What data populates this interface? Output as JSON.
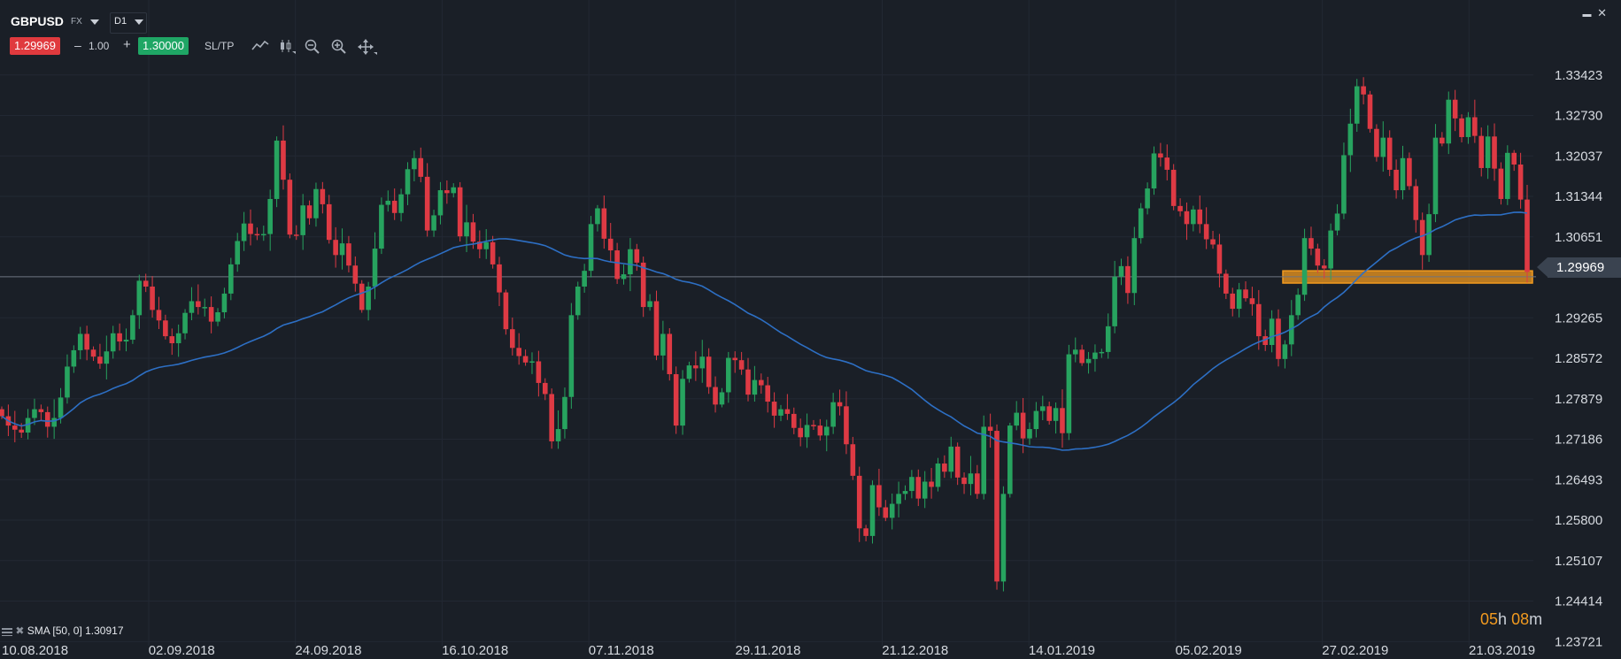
{
  "header": {
    "symbol": "GBPUSD",
    "market": "FX",
    "timeframe": "D1"
  },
  "trade_bar": {
    "sell_price": "1.29969",
    "qty_minus": "–",
    "quantity": "1.00",
    "qty_plus": "+",
    "buy_price": "1.30000",
    "sltp_label": "SL/TP"
  },
  "tools": [
    "line-chart-icon",
    "candlestick-icon",
    "zoom-out-icon",
    "zoom-in-icon",
    "pan-move-icon"
  ],
  "window_controls": {
    "minimize": "▬",
    "close": "✕"
  },
  "indicator": {
    "label": "SMA [50, 0] 1.30917"
  },
  "countdown": {
    "hours": "05",
    "h": "h",
    "minutes": "08",
    "m": "m"
  },
  "colors": {
    "background": "#1a1f27",
    "bull": "#27a35f",
    "bear": "#de3a44",
    "sma": "#2d6fc4",
    "highlight": "#f29a1f",
    "sell": "#e03a3e",
    "buy": "#1fa665"
  },
  "chart_data": {
    "type": "candlestick",
    "current_price": 1.29969,
    "ylim": [
      1.2365,
      1.3395
    ],
    "y_ticks": [
      "1.33423",
      "1.32730",
      "1.32037",
      "1.31344",
      "1.30651",
      "1.29969",
      "1.29265",
      "1.28572",
      "1.27879",
      "1.27186",
      "1.26493",
      "1.25800",
      "1.25107",
      "1.24414",
      "1.23721"
    ],
    "x_ticks": [
      "10.08.2018",
      "02.09.2018",
      "24.09.2018",
      "16.10.2018",
      "07.11.2018",
      "29.11.2018",
      "21.12.2018",
      "14.01.2019",
      "05.02.2019",
      "27.02.2019",
      "21.03.2019"
    ],
    "support_zone": [
      1.2986,
      1.3007
    ],
    "sma_period": 50,
    "sma_value": 1.30917,
    "closes": [
      1.2758,
      1.2742,
      1.2735,
      1.273,
      1.2755,
      1.277,
      1.2765,
      1.274,
      1.2755,
      1.279,
      1.2843,
      1.2871,
      1.2899,
      1.2872,
      1.286,
      1.2848,
      1.2869,
      1.29,
      1.2886,
      1.2889,
      1.2931,
      1.299,
      1.298,
      1.294,
      1.2922,
      1.2895,
      1.2883,
      1.29,
      1.2935,
      1.2955,
      1.2945,
      1.2945,
      1.292,
      1.2936,
      1.2968,
      1.3018,
      1.3058,
      1.3088,
      1.307,
      1.3068,
      1.307,
      1.313,
      1.323,
      1.3163,
      1.3069,
      1.3068,
      1.3119,
      1.3097,
      1.3147,
      1.3121,
      1.306,
      1.3034,
      1.3054,
      1.3016,
      1.2985,
      1.294,
      1.298,
      1.3045,
      1.312,
      1.3127,
      1.3106,
      1.3138,
      1.3181,
      1.32,
      1.3168,
      1.3076,
      1.3102,
      1.3145,
      1.314,
      1.315,
      1.3066,
      1.309,
      1.3057,
      1.3044,
      1.3056,
      1.3018,
      1.297,
      1.2907,
      1.2875,
      1.2861,
      1.285,
      1.2852,
      1.2815,
      1.2796,
      1.2715,
      1.2736,
      1.2791,
      1.2931,
      1.298,
      1.3007,
      1.3087,
      1.3114,
      1.3062,
      1.3042,
      1.2993,
      1.3001,
      1.3044,
      1.3021,
      1.2945,
      1.2955,
      1.2862,
      1.2899,
      1.283,
      1.2742,
      1.2822,
      1.2845,
      1.284,
      1.286,
      1.2808,
      1.2778,
      1.2799,
      1.2858,
      1.2854,
      1.2838,
      1.2795,
      1.282,
      1.2811,
      1.2783,
      1.2759,
      1.277,
      1.2762,
      1.2738,
      1.2722,
      1.2743,
      1.2742,
      1.2725,
      1.274,
      1.2782,
      1.2775,
      1.271,
      1.2656,
      1.2566,
      1.2553,
      1.264,
      1.2602,
      1.2584,
      1.2608,
      1.2625,
      1.263,
      1.2654,
      1.2617,
      1.2646,
      1.2637,
      1.2677,
      1.2663,
      1.2706,
      1.2653,
      1.2642,
      1.266,
      1.2625,
      1.274,
      1.2733,
      1.2475,
      1.2625,
      1.2742,
      1.2764,
      1.272,
      1.2736,
      1.2767,
      1.2775,
      1.275,
      1.2772,
      1.2729,
      1.2864,
      1.2872,
      1.2849,
      1.2856,
      1.2867,
      1.2868,
      1.2912,
      1.2997,
      1.3015,
      1.2969,
      1.3063,
      1.3114,
      1.3148,
      1.3208,
      1.3201,
      1.318,
      1.3118,
      1.3109,
      1.3087,
      1.3112,
      1.3087,
      1.3061,
      1.3052,
      1.3002,
      1.2968,
      1.2942,
      1.2975,
      1.296,
      1.295,
      1.2895,
      1.288,
      1.2925,
      1.2856,
      1.2881,
      1.2931,
      1.2966,
      1.3063,
      1.3045,
      1.3016,
      1.3011,
      1.3076,
      1.3105,
      1.3205,
      1.3259,
      1.3323,
      1.3309,
      1.325,
      1.3202,
      1.3235,
      1.318,
      1.3145,
      1.32,
      1.3152,
      1.3094,
      1.3034,
      1.3104,
      1.3235,
      1.3225,
      1.33,
      1.3268,
      1.3236,
      1.327,
      1.3238,
      1.3183,
      1.3237,
      1.3182,
      1.313,
      1.3209,
      1.3189,
      1.3129,
      1.3005
    ]
  }
}
